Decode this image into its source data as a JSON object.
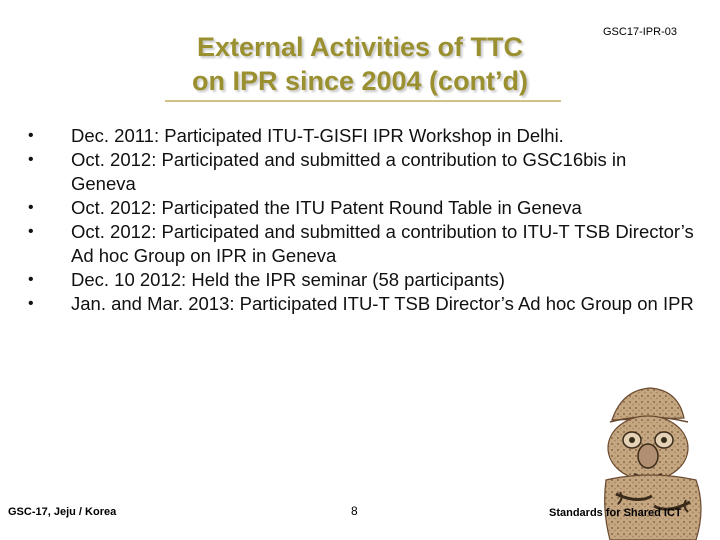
{
  "slide": {
    "title_line1": "External Activities of TTC",
    "title_line2": "on IPR since 2004 (cont’d)",
    "doc_code": "GSC17-IPR-03",
    "bullet_glyph": "•",
    "bullets": [
      "Dec. 2011: Participated ITU-T-GISFI IPR Workshop in Delhi.",
      "Oct. 2012: Participated and submitted a contribution to GSC16bis in Geneva",
      "Oct. 2012: Participated the ITU Patent Round Table in Geneva",
      "Oct. 2012: Participated and submitted a contribution to ITU-T TSB Director’s Ad hoc Group on IPR in Geneva",
      "Dec. 10 2012: Held the IPR seminar (58 participants)",
      "Jan. and Mar. 2013: Participated ITU-T TSB Director’s Ad hoc Group on IPR"
    ]
  },
  "footer": {
    "left": "GSC-17, Jeju / Korea",
    "page_number": "8",
    "right": "Standards for Shared ICT"
  },
  "colors": {
    "title": "#9a9030",
    "decoration": "#b89870"
  },
  "icons": {
    "decoration": "dolharubang-stone-statue"
  }
}
